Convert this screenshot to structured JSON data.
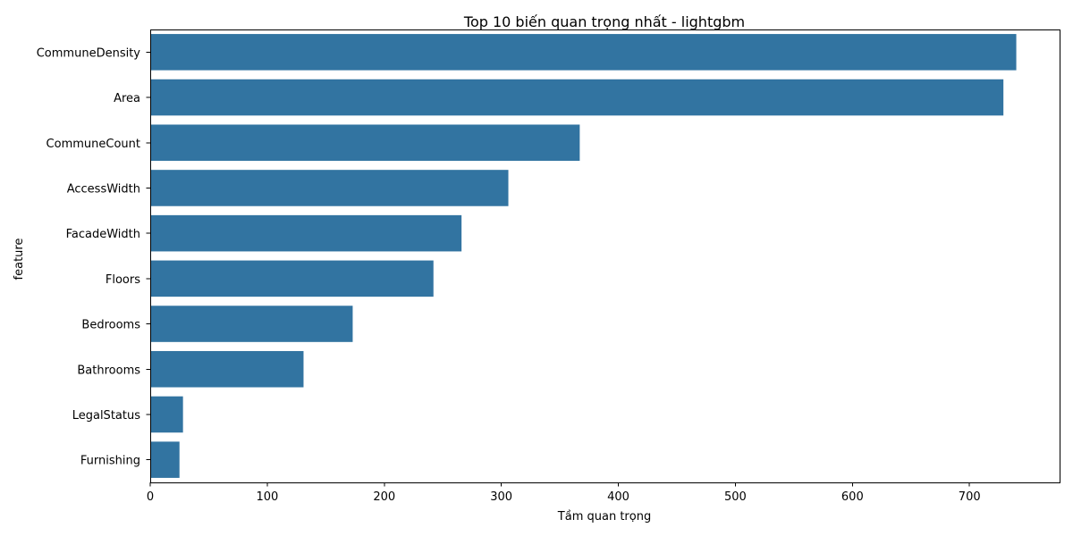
{
  "chart_data": {
    "type": "bar",
    "orientation": "horizontal",
    "title": "Top 10 biến quan trọng nhất - lightgbm",
    "xlabel": "Tầm quan trọng",
    "ylabel": "feature",
    "categories": [
      "CommuneDensity",
      "Area",
      "CommuneCount",
      "AccessWidth",
      "FacadeWidth",
      "Floors",
      "Bedrooms",
      "Bathrooms",
      "LegalStatus",
      "Furnishing"
    ],
    "values": [
      740,
      729,
      367,
      306,
      266,
      242,
      173,
      131,
      28,
      25
    ],
    "xlim": [
      0,
      777
    ],
    "xticks": [
      0,
      100,
      200,
      300,
      400,
      500,
      600,
      700
    ],
    "grid": false,
    "legend": "none",
    "bar_color": "#3274a1"
  }
}
